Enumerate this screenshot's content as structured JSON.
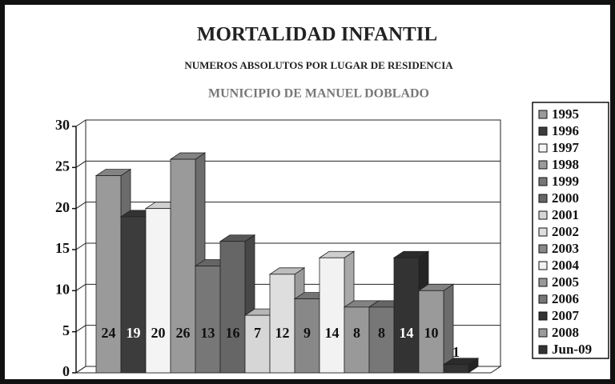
{
  "chart_data": {
    "type": "bar3d",
    "title": "MORTALIDAD INFANTIL",
    "subtitle": "NUMEROS ABSOLUTOS POR LUGAR DE RESIDENCIA",
    "subtitle2": "MUNICIPIO DE MANUEL DOBLADO",
    "ylim": [
      0,
      30
    ],
    "yticks": [
      0,
      5,
      10,
      15,
      20,
      25,
      30
    ],
    "grid": true,
    "legend": "right",
    "series": [
      {
        "name": "1995",
        "color": "#9a9a9a",
        "values": [
          24
        ]
      },
      {
        "name": "1996",
        "color": "#3c3c3c",
        "values": [
          19
        ]
      },
      {
        "name": "1997",
        "color": "#f4f4f4",
        "values": [
          20
        ]
      },
      {
        "name": "1998",
        "color": "#9a9a9a",
        "values": [
          26
        ]
      },
      {
        "name": "1999",
        "color": "#777777",
        "values": [
          13
        ]
      },
      {
        "name": "2000",
        "color": "#666666",
        "values": [
          16
        ]
      },
      {
        "name": "2001",
        "color": "#d6d6d6",
        "values": [
          7
        ]
      },
      {
        "name": "2002",
        "color": "#dedede",
        "values": [
          12
        ]
      },
      {
        "name": "2003",
        "color": "#888888",
        "values": [
          9
        ]
      },
      {
        "name": "2004",
        "color": "#f2f2f2",
        "values": [
          14
        ]
      },
      {
        "name": "2005",
        "color": "#999999",
        "values": [
          8
        ]
      },
      {
        "name": "2006",
        "color": "#777777",
        "values": [
          8
        ]
      },
      {
        "name": "2007",
        "color": "#333333",
        "values": [
          14
        ]
      },
      {
        "name": "2008",
        "color": "#9a9a9a",
        "values": [
          10
        ]
      },
      {
        "name": "Jun-09",
        "color": "#333333",
        "values": [
          1
        ]
      }
    ]
  }
}
